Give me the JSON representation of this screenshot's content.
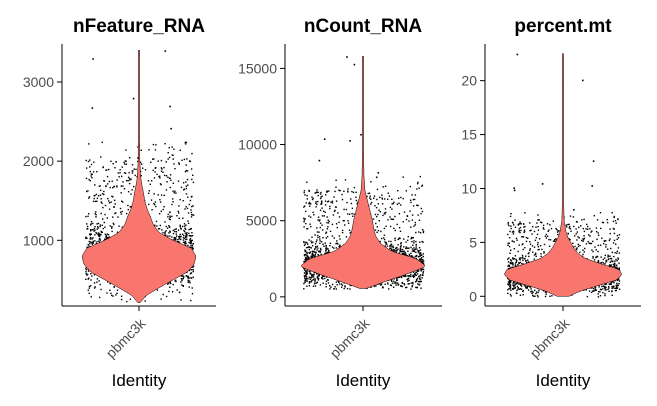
{
  "chart_data": [
    {
      "type": "violin",
      "title": "nFeature_RNA",
      "xlabel": "Identity",
      "ylabel": "",
      "categories": [
        "pbmc3k"
      ],
      "yticks": [
        1000,
        2000,
        3000
      ],
      "ylim": [
        170,
        3480
      ],
      "violin_color": "#F8766D",
      "summary": {
        "min": 212,
        "median": 817,
        "max": 3400,
        "dense_range": [
          480,
          1300
        ]
      },
      "series": [
        {
          "name": "pbmc3k",
          "density": [
            [
              212,
              0.02
            ],
            [
              300,
              0.12
            ],
            [
              400,
              0.35
            ],
            [
              500,
              0.6
            ],
            [
              600,
              0.85
            ],
            [
              700,
              0.97
            ],
            [
              800,
              1.0
            ],
            [
              900,
              0.92
            ],
            [
              1000,
              0.6
            ],
            [
              1100,
              0.35
            ],
            [
              1200,
              0.25
            ],
            [
              1300,
              0.2
            ],
            [
              1400,
              0.14
            ],
            [
              1500,
              0.1
            ],
            [
              1600,
              0.08
            ],
            [
              1700,
              0.05
            ],
            [
              1800,
              0.03
            ],
            [
              2000,
              0.015
            ],
            [
              2500,
              0.008
            ],
            [
              3000,
              0.005
            ],
            [
              3400,
              0.003
            ]
          ],
          "outliers": [
            3400,
            3300,
            2800,
            2700,
            2680,
            2420,
            2050,
            2000
          ]
        }
      ]
    },
    {
      "type": "violin",
      "title": "nCount_RNA",
      "xlabel": "Identity",
      "ylabel": "",
      "categories": [
        "pbmc3k"
      ],
      "yticks": [
        0,
        5000,
        10000,
        15000
      ],
      "ylim": [
        -600,
        16600
      ],
      "violin_color": "#F8766D",
      "summary": {
        "min": 548,
        "median": 2200,
        "max": 15800,
        "dense_range": [
          1000,
          4200
        ]
      },
      "series": [
        {
          "name": "pbmc3k",
          "density": [
            [
              548,
              0.05
            ],
            [
              1000,
              0.35
            ],
            [
              1500,
              0.7
            ],
            [
              2000,
              1.0
            ],
            [
              2500,
              0.85
            ],
            [
              3000,
              0.45
            ],
            [
              3500,
              0.28
            ],
            [
              4000,
              0.2
            ],
            [
              4500,
              0.17
            ],
            [
              5000,
              0.15
            ],
            [
              5500,
              0.12
            ],
            [
              6000,
              0.09
            ],
            [
              6500,
              0.06
            ],
            [
              7000,
              0.03
            ],
            [
              8000,
              0.015
            ],
            [
              10000,
              0.008
            ],
            [
              13000,
              0.005
            ],
            [
              15800,
              0.003
            ]
          ],
          "outliers": [
            15800,
            15300,
            10700,
            10400,
            10300,
            9000,
            8200,
            7900
          ]
        }
      ]
    },
    {
      "type": "violin",
      "title": "percent.mt",
      "xlabel": "Identity",
      "ylabel": "",
      "categories": [
        "pbmc3k"
      ],
      "yticks": [
        0,
        5,
        10,
        15,
        20
      ],
      "ylim": [
        -0.9,
        23.4
      ],
      "violin_color": "#F8766D",
      "summary": {
        "min": 0.0,
        "median": 2.0,
        "max": 22.5,
        "dense_range": [
          0.7,
          4.0
        ]
      },
      "series": [
        {
          "name": "pbmc3k",
          "density": [
            [
              0.0,
              0.1
            ],
            [
              0.5,
              0.3
            ],
            [
              1.0,
              0.6
            ],
            [
              1.5,
              0.9
            ],
            [
              2.0,
              1.0
            ],
            [
              2.5,
              0.95
            ],
            [
              3.0,
              0.65
            ],
            [
              3.5,
              0.38
            ],
            [
              4.0,
              0.25
            ],
            [
              4.5,
              0.18
            ],
            [
              5.0,
              0.13
            ],
            [
              5.5,
              0.08
            ],
            [
              6.0,
              0.05
            ],
            [
              7.0,
              0.02
            ],
            [
              9.0,
              0.01
            ],
            [
              12.0,
              0.006
            ],
            [
              16.0,
              0.004
            ],
            [
              22.5,
              0.003
            ]
          ],
          "outliers": [
            22.5,
            20.1,
            12.6,
            10.5,
            10.3,
            10.1,
            9.9,
            8.1
          ]
        }
      ]
    }
  ]
}
